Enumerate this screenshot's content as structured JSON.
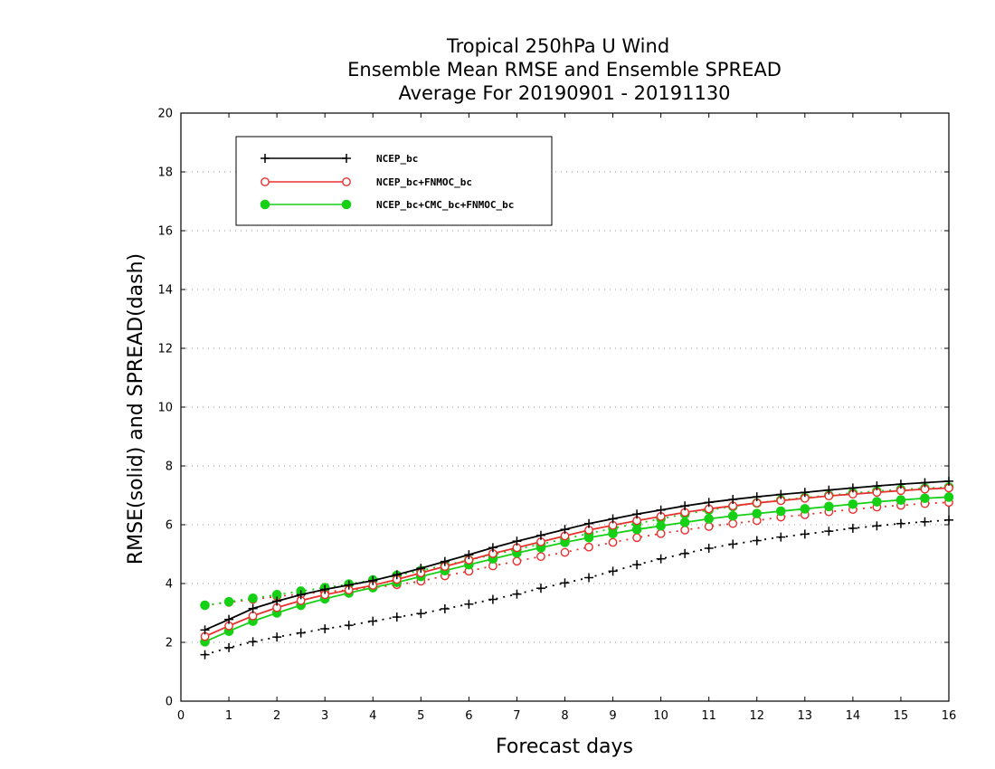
{
  "chart_data": {
    "type": "line",
    "title": [
      "Tropical 250hPa U Wind",
      "Ensemble Mean RMSE and Ensemble SPREAD",
      "Average For 20190901 - 20191130"
    ],
    "xlabel": "Forecast days",
    "ylabel": "RMSE(solid) and SPREAD(dash)",
    "xlim": [
      0,
      16
    ],
    "ylim": [
      0,
      20
    ],
    "xticks": [
      "0",
      "1",
      "2",
      "3",
      "4",
      "5",
      "6",
      "7",
      "8",
      "9",
      "10",
      "11",
      "12",
      "13",
      "14",
      "15",
      "16"
    ],
    "yticks": [
      "0",
      "2",
      "4",
      "6",
      "8",
      "10",
      "12",
      "14",
      "16",
      "18",
      "20"
    ],
    "grid": "horizontal dotted",
    "legend_position": "top-left",
    "x": [
      0.5,
      1,
      1.5,
      2,
      2.5,
      3,
      3.5,
      4,
      4.5,
      5,
      5.5,
      6,
      6.5,
      7,
      7.5,
      8,
      8.5,
      9,
      9.5,
      10,
      10.5,
      11,
      11.5,
      12,
      12.5,
      13,
      13.5,
      14,
      14.5,
      15,
      15.5,
      16
    ],
    "series": [
      {
        "name": "NCEP_bc",
        "color": "#000000",
        "marker": "plus",
        "rmse": [
          2.42,
          2.78,
          3.15,
          3.4,
          3.62,
          3.8,
          3.95,
          4.1,
          4.3,
          4.52,
          4.75,
          4.98,
          5.22,
          5.44,
          5.64,
          5.84,
          6.04,
          6.2,
          6.36,
          6.5,
          6.64,
          6.76,
          6.86,
          6.95,
          7.03,
          7.1,
          7.18,
          7.25,
          7.32,
          7.38,
          7.43,
          7.48
        ],
        "spread": [
          1.58,
          1.82,
          2.02,
          2.18,
          2.32,
          2.46,
          2.58,
          2.72,
          2.86,
          2.98,
          3.14,
          3.3,
          3.46,
          3.64,
          3.84,
          4.02,
          4.2,
          4.42,
          4.64,
          4.84,
          5.02,
          5.2,
          5.34,
          5.46,
          5.58,
          5.68,
          5.78,
          5.88,
          5.96,
          6.04,
          6.1,
          6.16
        ]
      },
      {
        "name": "NCEP_bc+FNMOC_bc",
        "color": "#e8312e",
        "marker": "open-circle",
        "rmse": [
          2.2,
          2.56,
          2.9,
          3.18,
          3.42,
          3.62,
          3.78,
          3.94,
          4.14,
          4.36,
          4.58,
          4.8,
          5.02,
          5.22,
          5.42,
          5.62,
          5.82,
          5.98,
          6.14,
          6.28,
          6.42,
          6.54,
          6.64,
          6.74,
          6.82,
          6.9,
          6.98,
          7.04,
          7.1,
          7.16,
          7.21,
          7.25
        ],
        "spread": [
          3.26,
          3.36,
          3.46,
          3.56,
          3.64,
          3.72,
          3.78,
          3.86,
          3.96,
          4.08,
          4.26,
          4.42,
          4.6,
          4.76,
          4.92,
          5.06,
          5.24,
          5.4,
          5.56,
          5.7,
          5.82,
          5.94,
          6.04,
          6.14,
          6.26,
          6.34,
          6.44,
          6.52,
          6.6,
          6.66,
          6.72,
          6.76
        ]
      },
      {
        "name": "NCEP_bc+CMC_bc+FNMOC_bc",
        "color": "#16d016",
        "marker": "filled-circle",
        "rmse": [
          2.02,
          2.38,
          2.72,
          3.0,
          3.26,
          3.48,
          3.68,
          3.86,
          4.04,
          4.24,
          4.44,
          4.64,
          4.84,
          5.04,
          5.22,
          5.4,
          5.56,
          5.7,
          5.84,
          5.96,
          6.08,
          6.2,
          6.3,
          6.38,
          6.46,
          6.54,
          6.62,
          6.7,
          6.78,
          6.84,
          6.9,
          6.94
        ],
        "spread": [
          3.26,
          3.38,
          3.5,
          3.62,
          3.74,
          3.86,
          3.98,
          4.12,
          4.28,
          4.44,
          4.62,
          4.8,
          4.98,
          5.16,
          5.34,
          5.52,
          5.7,
          5.88,
          6.04,
          6.2,
          6.36,
          6.5,
          6.62,
          6.74,
          6.84,
          6.92,
          7.0,
          7.08,
          7.14,
          7.2,
          7.24,
          7.28
        ]
      }
    ]
  }
}
